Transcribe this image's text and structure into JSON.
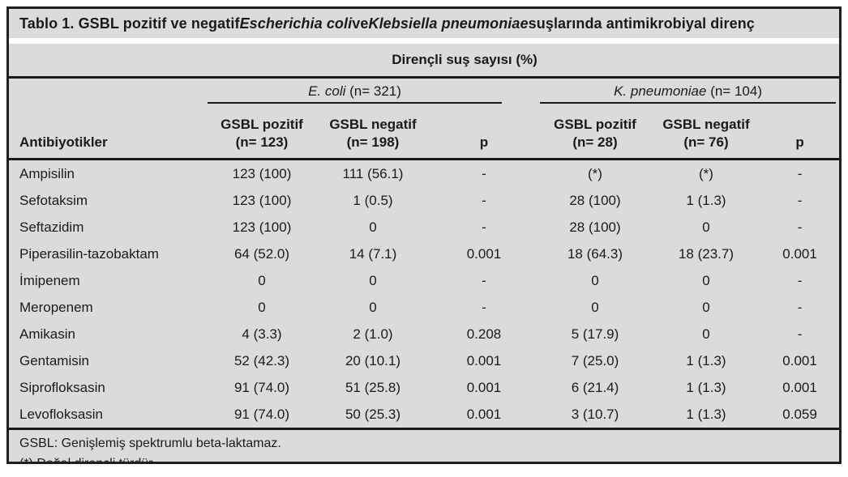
{
  "title": {
    "part1": "Tablo 1. GSBL pozitif ve negatif ",
    "italic1": "Escherichia coli",
    "part2": " ve ",
    "italic2": "Klebsiella pneumoniae",
    "part3": " suşlarında antimikrobiyal direnç"
  },
  "header": {
    "span": "Dirençli suş sayısı (%)",
    "antibiotics_col": "Antibiyotikler",
    "groups": [
      {
        "species": "E. coli",
        "n": " (n= 321)"
      },
      {
        "species": "K. pneumoniae",
        "n": " (n= 104)"
      }
    ],
    "subcols": [
      {
        "line1": "GSBL pozitif",
        "line2": "(n= 123)"
      },
      {
        "line1": "GSBL negatif",
        "line2": "(n= 198)"
      },
      {
        "line1": "p",
        "line2": ""
      },
      {
        "line1": "GSBL pozitif",
        "line2": "(n= 28)"
      },
      {
        "line1": "GSBL negatif",
        "line2": "(n= 76)"
      },
      {
        "line1": "p",
        "line2": ""
      }
    ]
  },
  "rows": [
    {
      "name": "Ampisilin",
      "values": [
        "123 (100)",
        "111 (56.1)",
        "-",
        "(*)",
        "(*)",
        "-"
      ]
    },
    {
      "name": "Sefotaksim",
      "values": [
        "123 (100)",
        "1 (0.5)",
        "-",
        "28 (100)",
        "1 (1.3)",
        "-"
      ]
    },
    {
      "name": "Seftazidim",
      "values": [
        "123 (100)",
        "0",
        "-",
        "28 (100)",
        "0",
        "-"
      ]
    },
    {
      "name": "Piperasilin-tazobaktam",
      "values": [
        "64 (52.0)",
        "14 (7.1)",
        "0.001",
        "18 (64.3)",
        "18 (23.7)",
        "0.001"
      ]
    },
    {
      "name": "İmipenem",
      "values": [
        "0",
        "0",
        "-",
        "0",
        "0",
        "-"
      ]
    },
    {
      "name": "Meropenem",
      "values": [
        "0",
        "0",
        "-",
        "0",
        "0",
        "-"
      ]
    },
    {
      "name": "Amikasin",
      "values": [
        "4 (3.3)",
        "2 (1.0)",
        "0.208",
        "5 (17.9)",
        "0",
        "-"
      ]
    },
    {
      "name": "Gentamisin",
      "values": [
        "52 (42.3)",
        "20 (10.1)",
        "0.001",
        "7 (25.0)",
        "1 (1.3)",
        "0.001"
      ]
    },
    {
      "name": "Siprofloksasin",
      "values": [
        "91 (74.0)",
        "51 (25.8)",
        "0.001",
        "6 (21.4)",
        "1 (1.3)",
        "0.001"
      ]
    },
    {
      "name": "Levofloksasin",
      "values": [
        "91 (74.0)",
        "50 (25.3)",
        "0.001",
        "3 (10.7)",
        "1 (1.3)",
        "0.059"
      ]
    }
  ],
  "footnotes": [
    "GSBL: Genişlemiş spektrumlu beta-laktamaz.",
    "(*) Doğal dirençli türdür."
  ],
  "colors": {
    "background": "#d9dcdb",
    "rule": "#1a1a1a",
    "text": "#1a1a1a",
    "separator": "#ffffff"
  }
}
